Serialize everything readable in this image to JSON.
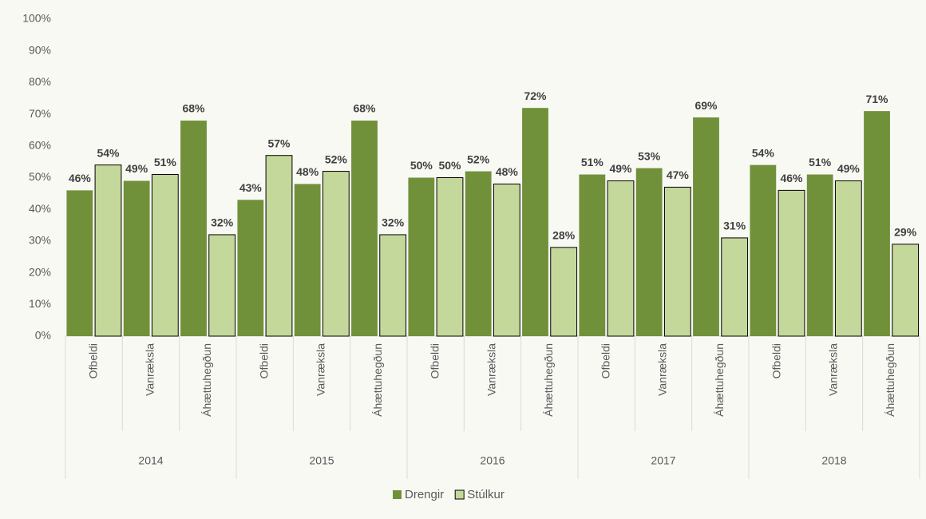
{
  "chart_data": {
    "type": "bar",
    "categories": [
      "Ofbeldi",
      "Vanræksla",
      "Áhættuhegðun",
      "Ofbeldi",
      "Vanræksla",
      "Áhættuhegðun",
      "Ofbeldi",
      "Vanræksla",
      "Áhættuhegðun",
      "Ofbeldi",
      "Vanræksla",
      "Áhættuhegðun",
      "Ofbeldi",
      "Vanræksla",
      "Áhættuhegðun"
    ],
    "groups": [
      "2014",
      "2015",
      "2016",
      "2017",
      "2018"
    ],
    "series": [
      {
        "name": "Drengir",
        "color": "#70913a",
        "values": [
          46,
          49,
          68,
          43,
          48,
          68,
          50,
          52,
          72,
          51,
          53,
          69,
          54,
          51,
          71
        ],
        "value_labels": [
          "46%",
          "49%",
          "68%",
          "43%",
          "48%",
          "68%",
          "50%",
          "52%",
          "72%",
          "51%",
          "53%",
          "69%",
          "54%",
          "51%",
          "71%"
        ]
      },
      {
        "name": "Stúlkur",
        "color": "#c4d89b",
        "values": [
          54,
          51,
          32,
          57,
          52,
          32,
          50,
          48,
          28,
          49,
          47,
          31,
          46,
          49,
          29
        ],
        "value_labels": [
          "54%",
          "51%",
          "32%",
          "57%",
          "52%",
          "32%",
          "50%",
          "48%",
          "28%",
          "49%",
          "47%",
          "31%",
          "46%",
          "49%",
          "29%"
        ]
      }
    ],
    "ylim": [
      0,
      100
    ],
    "yticks": [
      {
        "value": 0,
        "label": "0%"
      },
      {
        "value": 10,
        "label": "10%"
      },
      {
        "value": 20,
        "label": "20%"
      },
      {
        "value": 30,
        "label": "30%"
      },
      {
        "value": 40,
        "label": "40%"
      },
      {
        "value": 50,
        "label": "50%"
      },
      {
        "value": 60,
        "label": "60%"
      },
      {
        "value": 70,
        "label": "70%"
      },
      {
        "value": 80,
        "label": "80%"
      },
      {
        "value": 90,
        "label": "90%"
      },
      {
        "value": 100,
        "label": "100%"
      }
    ],
    "grid": false,
    "legend": "bottom"
  }
}
